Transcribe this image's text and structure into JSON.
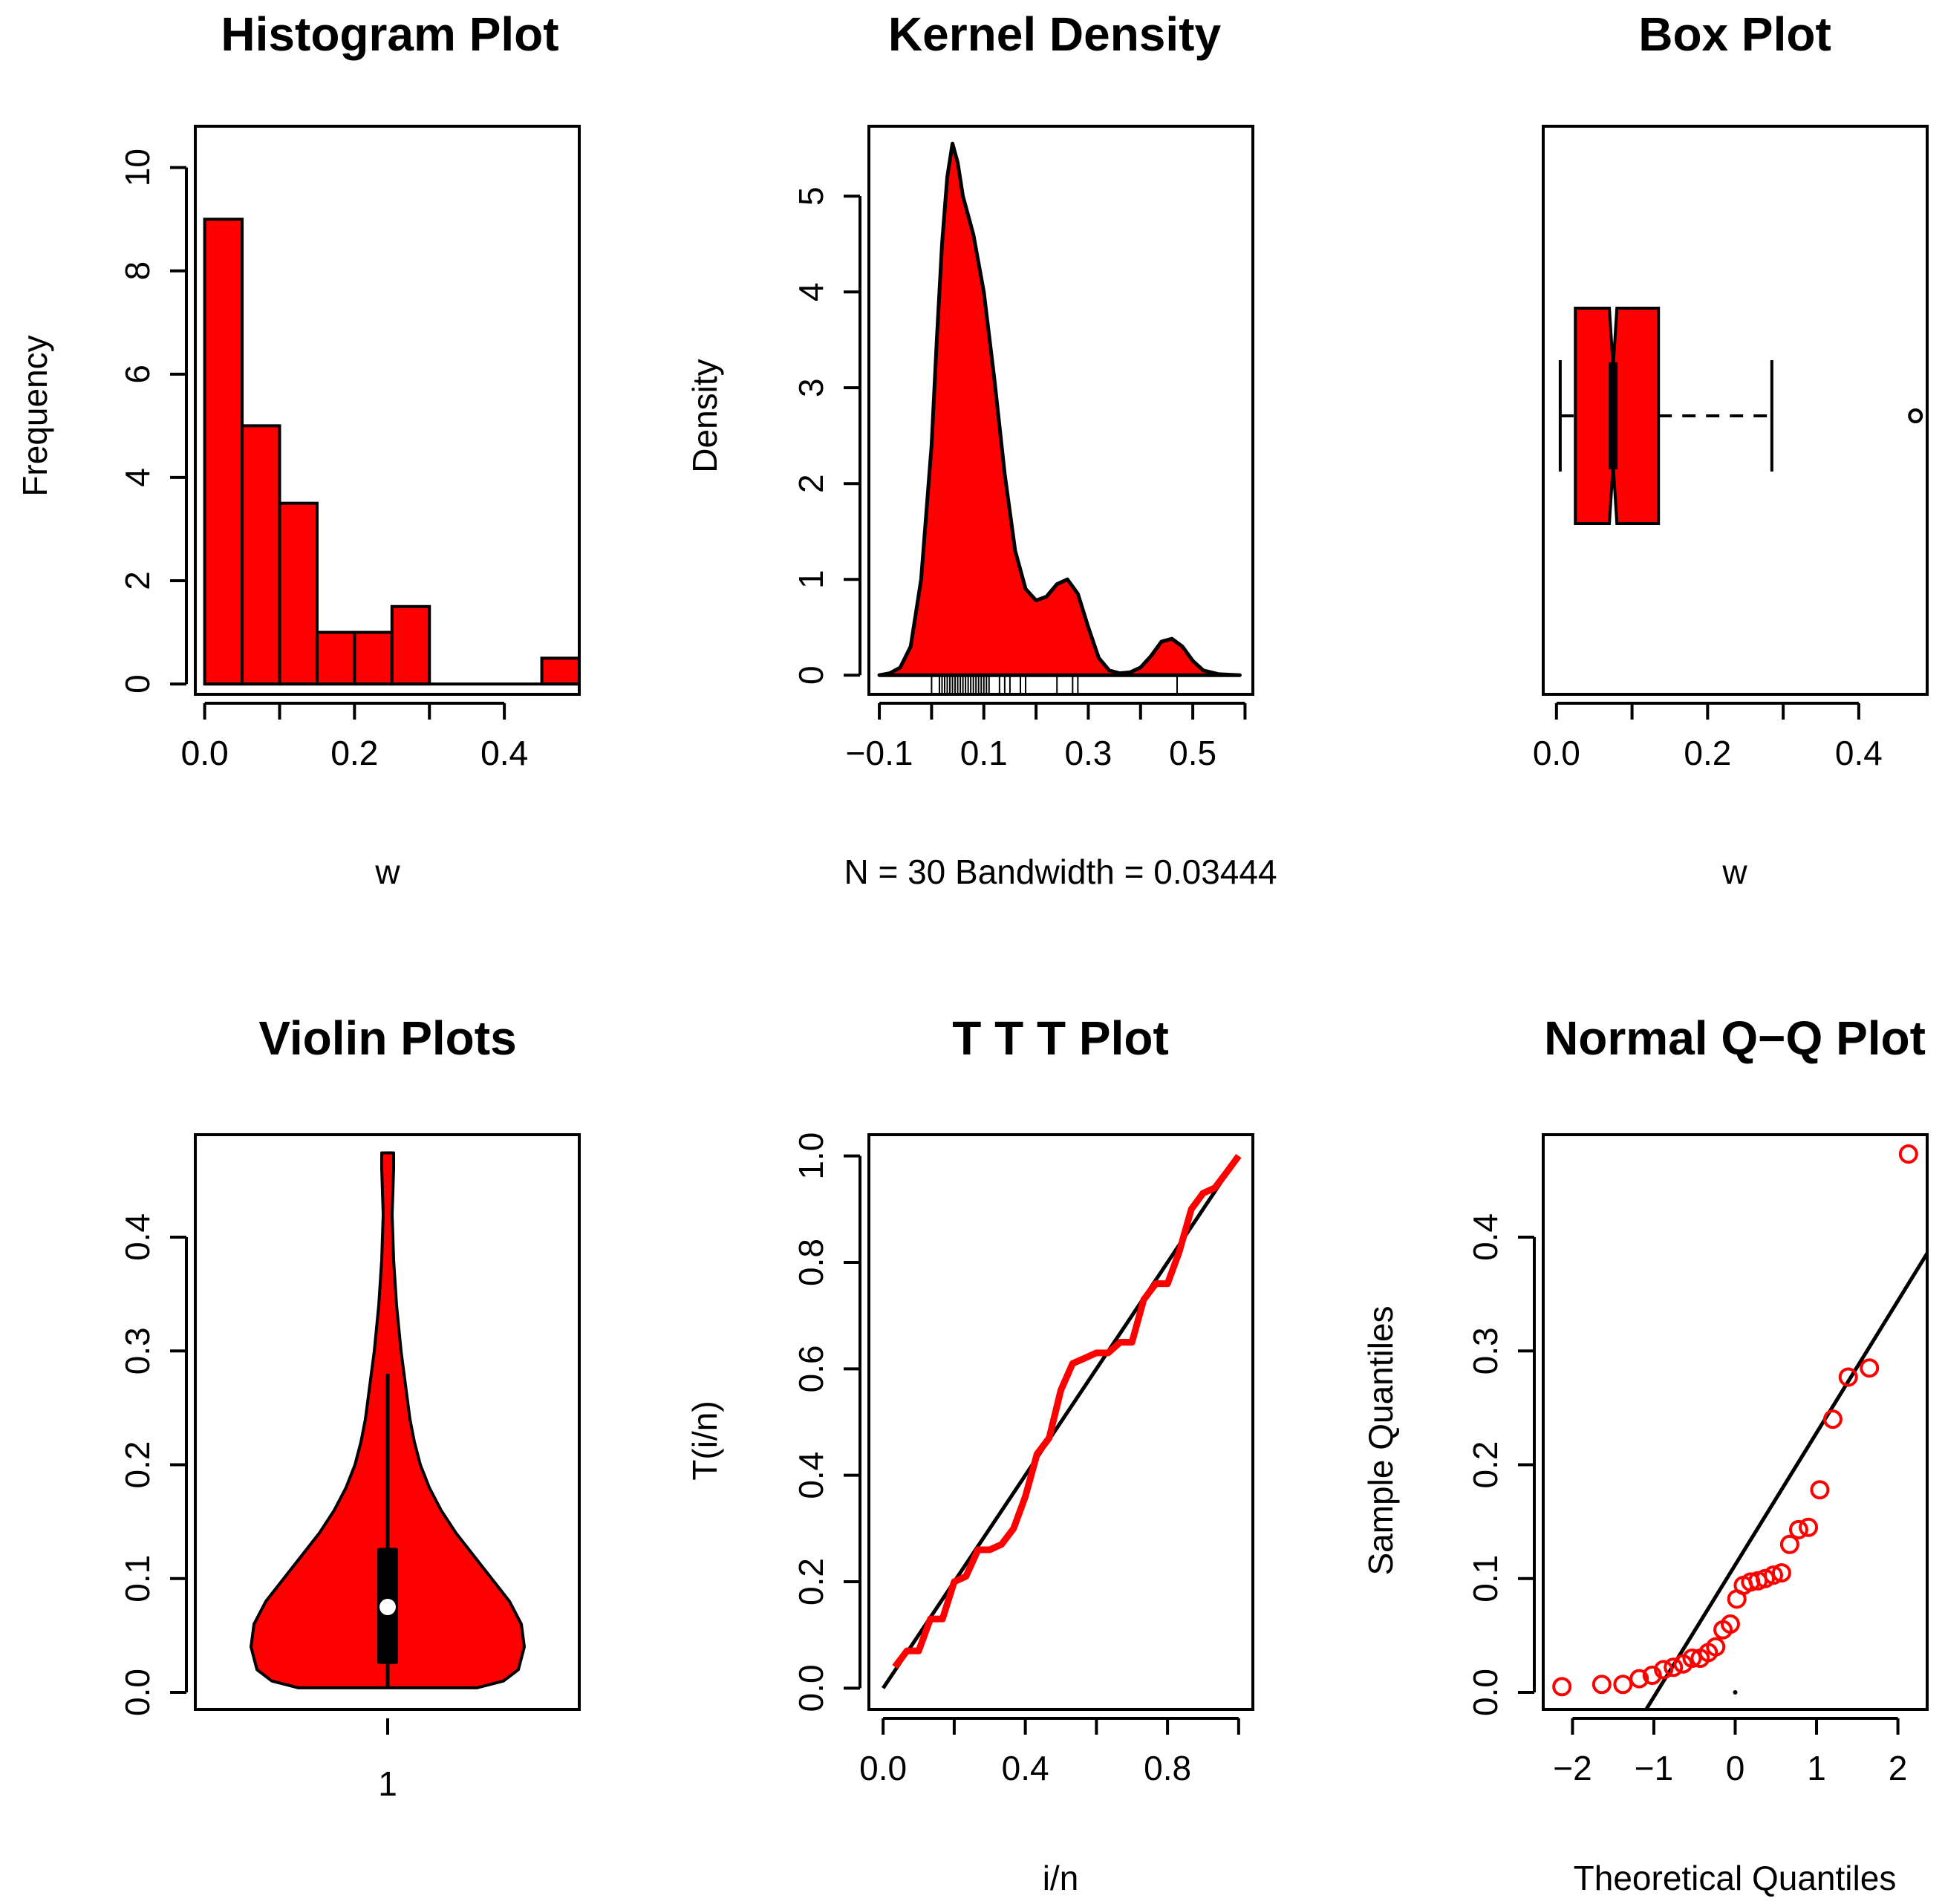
{
  "chart_data": [
    {
      "type": "bar",
      "title": "Histogram Plot",
      "xlabel": "w",
      "ylabel": "Frequency",
      "xlim": [
        0.0,
        0.5
      ],
      "ylim": [
        0,
        10
      ],
      "xticks": [
        "0.0",
        "0.2",
        "0.4"
      ],
      "yticks": [
        "0",
        "2",
        "4",
        "6",
        "8",
        "10"
      ],
      "bins": [
        {
          "from": 0.0,
          "to": 0.05,
          "count": 9
        },
        {
          "from": 0.05,
          "to": 0.1,
          "count": 5
        },
        {
          "from": 0.1,
          "to": 0.15,
          "count": 3.5
        },
        {
          "from": 0.15,
          "to": 0.2,
          "count": 1
        },
        {
          "from": 0.2,
          "to": 0.25,
          "count": 1
        },
        {
          "from": 0.25,
          "to": 0.3,
          "count": 1.5
        },
        {
          "from": 0.3,
          "to": 0.35,
          "count": 0
        },
        {
          "from": 0.35,
          "to": 0.4,
          "count": 0
        },
        {
          "from": 0.4,
          "to": 0.45,
          "count": 0
        },
        {
          "from": 0.45,
          "to": 0.5,
          "count": 0.5
        }
      ],
      "fill": "#ff0000"
    },
    {
      "type": "area",
      "title": "Kernel Density",
      "xlabel": "N = 30   Bandwidth = 0.03444",
      "ylabel": "Density",
      "xlim": [
        -0.1,
        0.6
      ],
      "ylim": [
        0,
        5.5
      ],
      "xticks": [
        "−0.1",
        "0.1",
        "0.3",
        "0.5"
      ],
      "yticks": [
        "0",
        "1",
        "2",
        "3",
        "4",
        "5"
      ],
      "curve": {
        "x": [
          -0.1,
          -0.08,
          -0.06,
          -0.04,
          -0.02,
          0.0,
          0.01,
          0.02,
          0.03,
          0.04,
          0.05,
          0.06,
          0.08,
          0.1,
          0.12,
          0.14,
          0.16,
          0.18,
          0.2,
          0.22,
          0.24,
          0.26,
          0.28,
          0.3,
          0.32,
          0.34,
          0.36,
          0.38,
          0.4,
          0.42,
          0.44,
          0.46,
          0.48,
          0.5,
          0.52,
          0.55,
          0.59
        ],
        "y": [
          0.0,
          0.02,
          0.08,
          0.3,
          1.0,
          2.4,
          3.5,
          4.5,
          5.2,
          5.55,
          5.35,
          5.0,
          4.6,
          4.0,
          3.1,
          2.1,
          1.3,
          0.9,
          0.78,
          0.82,
          0.95,
          1.0,
          0.85,
          0.5,
          0.18,
          0.05,
          0.02,
          0.03,
          0.08,
          0.2,
          0.35,
          0.38,
          0.3,
          0.15,
          0.05,
          0.01,
          0.0
        ]
      },
      "rug": [
        0.0,
        0.015,
        0.02,
        0.025,
        0.03,
        0.035,
        0.04,
        0.045,
        0.05,
        0.055,
        0.06,
        0.065,
        0.07,
        0.075,
        0.08,
        0.085,
        0.09,
        0.095,
        0.1,
        0.105,
        0.11,
        0.13,
        0.14,
        0.15,
        0.17,
        0.18,
        0.24,
        0.27,
        0.28,
        0.47
      ],
      "fill": "#ff0000"
    },
    {
      "type": "box",
      "title": "Box Plot",
      "xlabel": "w",
      "xlim": [
        -0.02,
        0.49
      ],
      "xticks": [
        "0.0",
        "0.2",
        "0.4"
      ],
      "whisker_low": 0.005,
      "q1": 0.025,
      "median": 0.075,
      "q3": 0.135,
      "notch_low": 0.07,
      "notch_high": 0.08,
      "whisker_high": 0.285,
      "outliers": [
        0.475
      ],
      "fill": "#ff0000"
    },
    {
      "type": "violin",
      "title": "Violin Plots",
      "xlabel": "1",
      "ylim": [
        -0.015,
        0.49
      ],
      "yticks": [
        "0.0",
        "0.1",
        "0.2",
        "0.3",
        "0.4"
      ],
      "profile": {
        "y": [
          0.004,
          0.01,
          0.02,
          0.04,
          0.06,
          0.08,
          0.1,
          0.12,
          0.14,
          0.16,
          0.18,
          0.2,
          0.22,
          0.24,
          0.26,
          0.28,
          0.3,
          0.32,
          0.34,
          0.36,
          0.38,
          0.4,
          0.42,
          0.44,
          0.46,
          0.474
        ],
        "half_width": [
          0.6,
          0.78,
          0.88,
          0.92,
          0.9,
          0.82,
          0.7,
          0.58,
          0.46,
          0.36,
          0.28,
          0.22,
          0.18,
          0.15,
          0.13,
          0.11,
          0.09,
          0.075,
          0.06,
          0.05,
          0.04,
          0.035,
          0.03,
          0.035,
          0.04,
          0.04
        ]
      },
      "box": {
        "q1": 0.025,
        "median": 0.075,
        "q3": 0.127,
        "whisker_low": 0.004,
        "whisker_high": 0.28
      },
      "fill": "#ff0000"
    },
    {
      "type": "line",
      "title": "T T T Plot",
      "xlabel": "i/n",
      "ylabel": "T(i/n)",
      "xlim": [
        0,
        1
      ],
      "ylim": [
        0,
        1
      ],
      "xticks": [
        "0.0",
        "0.4",
        "0.8"
      ],
      "yticks": [
        "0.0",
        "0.2",
        "0.4",
        "0.6",
        "0.8",
        "1.0"
      ],
      "series": [
        {
          "name": "TTT",
          "x": [
            0.033,
            0.067,
            0.1,
            0.133,
            0.167,
            0.2,
            0.233,
            0.267,
            0.3,
            0.333,
            0.367,
            0.4,
            0.433,
            0.467,
            0.5,
            0.533,
            0.567,
            0.6,
            0.633,
            0.667,
            0.7,
            0.733,
            0.767,
            0.8,
            0.833,
            0.867,
            0.9,
            0.933,
            0.967,
            1.0
          ],
          "y": [
            0.04,
            0.07,
            0.07,
            0.13,
            0.13,
            0.2,
            0.21,
            0.26,
            0.26,
            0.27,
            0.3,
            0.36,
            0.44,
            0.47,
            0.56,
            0.61,
            0.62,
            0.63,
            0.63,
            0.65,
            0.65,
            0.73,
            0.76,
            0.76,
            0.82,
            0.9,
            0.93,
            0.94,
            0.97,
            1.0
          ],
          "color": "#ff0000"
        },
        {
          "name": "reference",
          "x": [
            0,
            1
          ],
          "y": [
            0,
            1
          ],
          "color": "#000000"
        }
      ]
    },
    {
      "type": "scatter",
      "title": "Normal Q−Q Plot",
      "xlabel": "Theoretical Quantiles",
      "ylabel": "Sample Quantiles",
      "xlim": [
        -2.3,
        2.3
      ],
      "ylim": [
        -0.015,
        0.49
      ],
      "xticks": [
        "−2",
        "−1",
        "0",
        "1",
        "2"
      ],
      "yticks": [
        "0.0",
        "0.1",
        "0.2",
        "0.3",
        "0.4"
      ],
      "x": [
        -2.13,
        -1.64,
        -1.38,
        -1.18,
        -1.02,
        -0.88,
        -0.76,
        -0.64,
        -0.53,
        -0.43,
        -0.33,
        -0.24,
        -0.15,
        -0.06,
        0.02,
        0.1,
        0.19,
        0.28,
        0.37,
        0.47,
        0.57,
        0.67,
        0.78,
        0.9,
        1.04,
        1.2,
        1.39,
        1.65,
        2.13,
        0.0
      ],
      "y": [
        0.005,
        0.007,
        0.007,
        0.012,
        0.015,
        0.02,
        0.022,
        0.025,
        0.03,
        0.03,
        0.035,
        0.04,
        0.055,
        0.06,
        0.082,
        0.094,
        0.097,
        0.098,
        0.1,
        0.103,
        0.105,
        0.13,
        0.143,
        0.145,
        0.178,
        0.24,
        0.277,
        0.285,
        0.473,
        0.0
      ],
      "qq_line": {
        "slope": 0.116,
        "intercept": 0.112
      },
      "color": "#ff0000"
    }
  ]
}
